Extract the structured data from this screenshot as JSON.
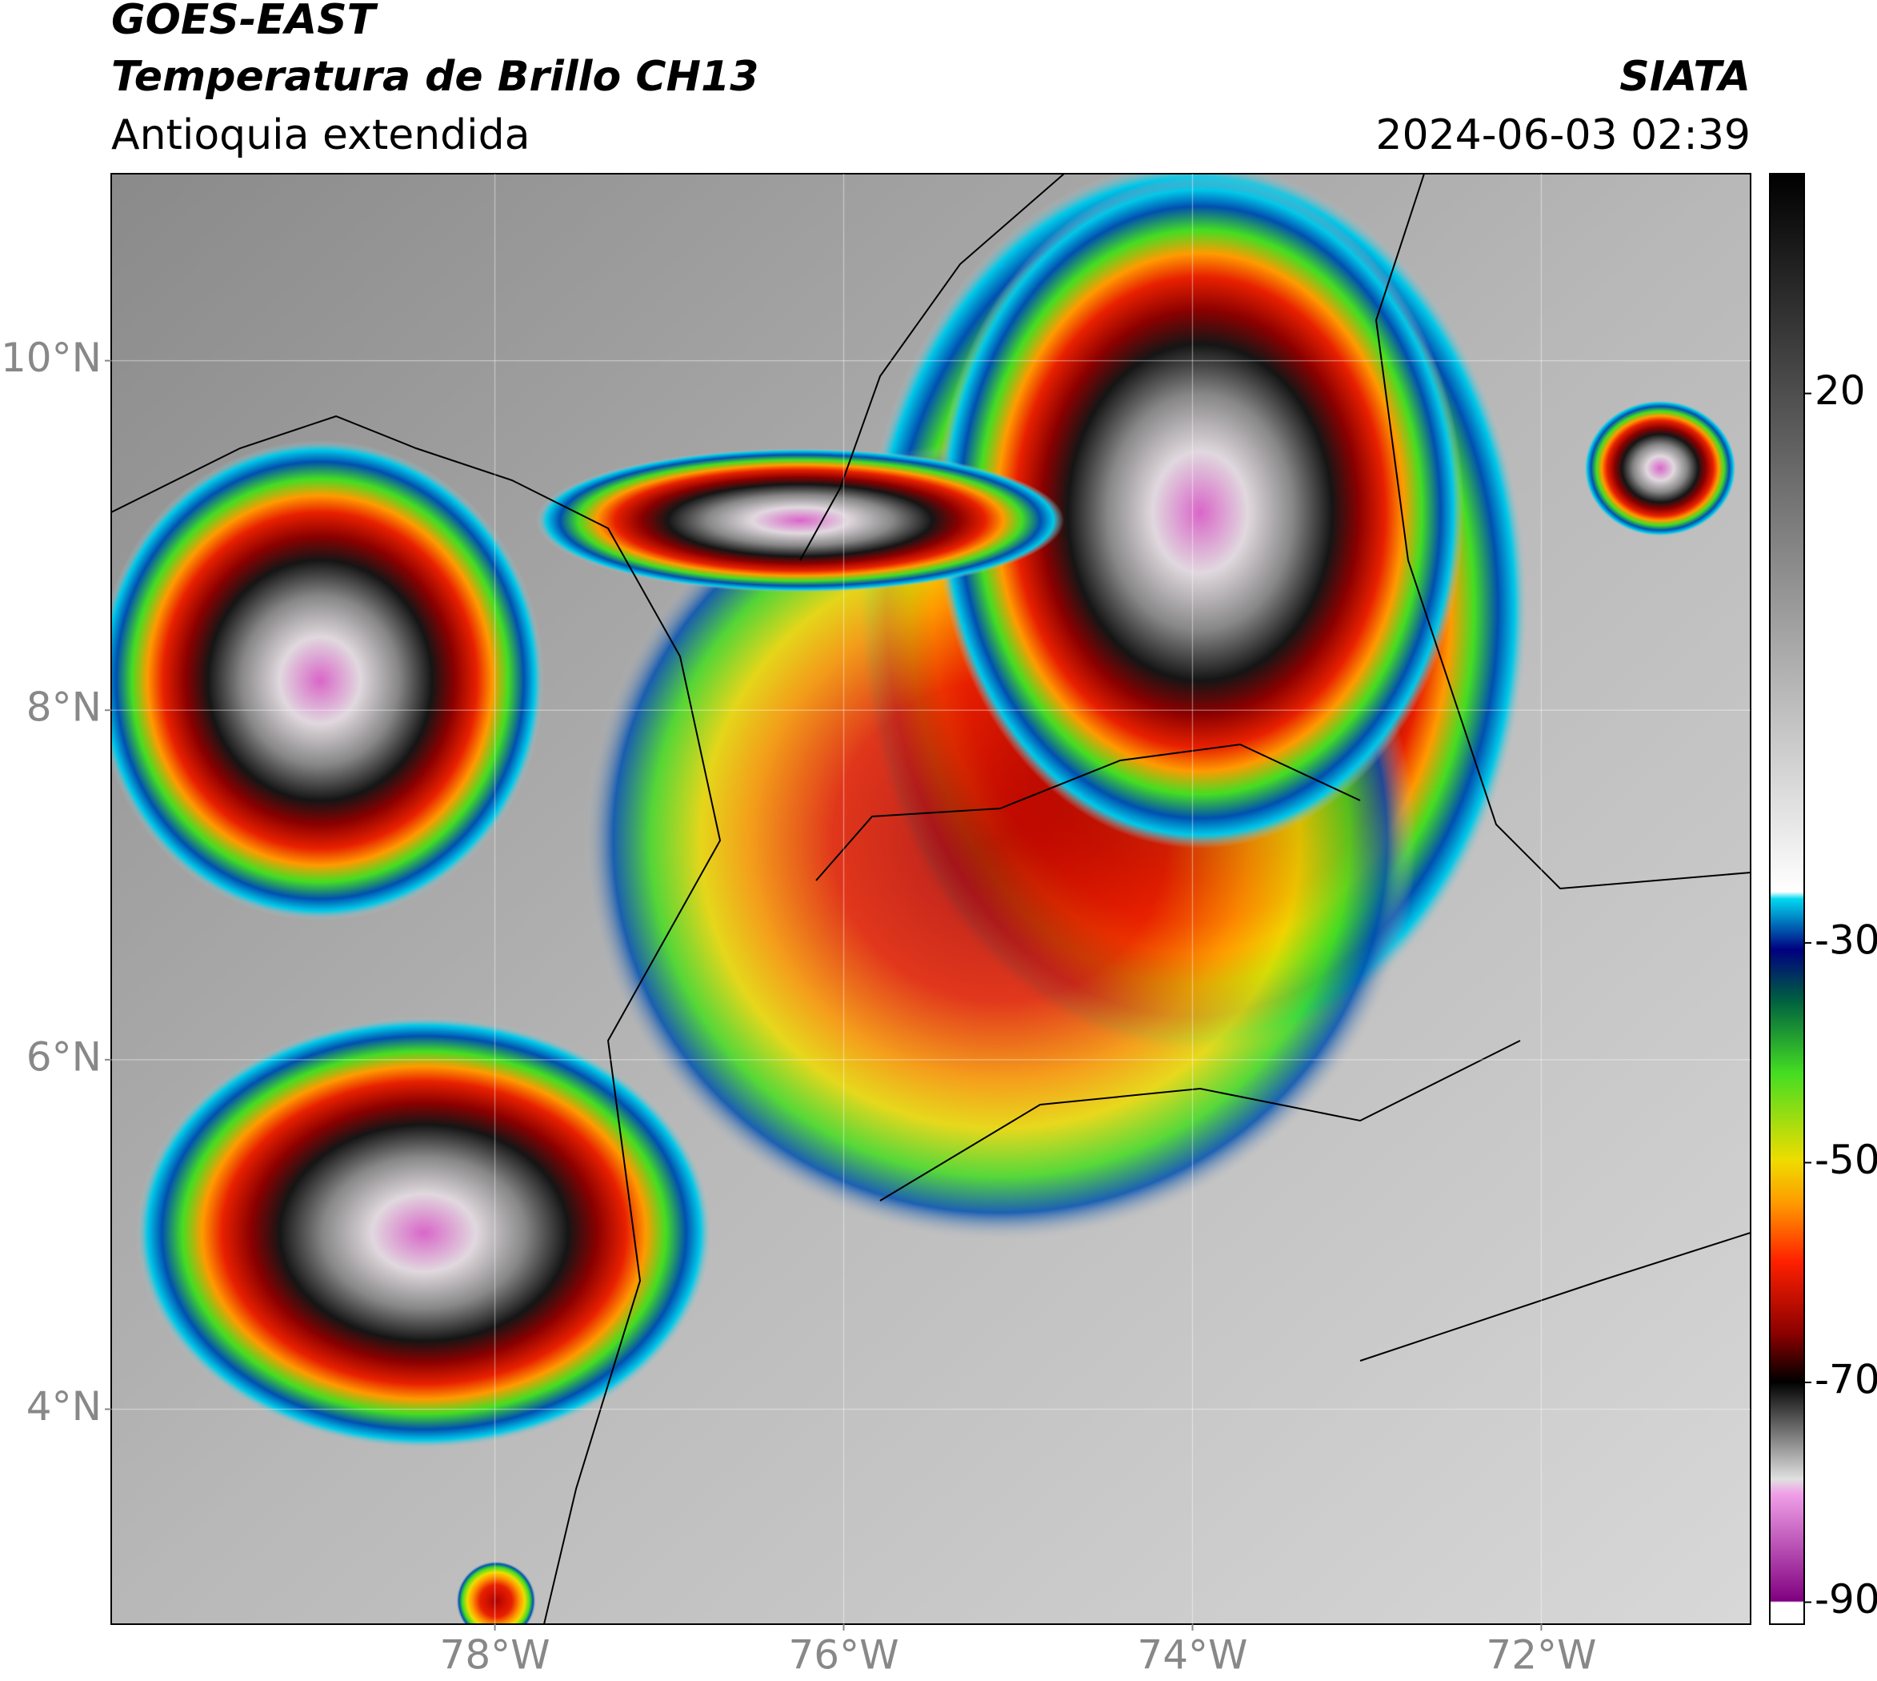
{
  "header": {
    "title": "GOES-EAST",
    "subtitle": "Temperatura de Brillo CH13",
    "region": "Antioquia extendida",
    "source": "SIATA",
    "datetime": "2024-06-03 02:39"
  },
  "map": {
    "xlim": [
      -80.2,
      -70.8
    ],
    "ylim": [
      2.77,
      11.07
    ],
    "xticks": [
      {
        "value": -78,
        "label": "78°W"
      },
      {
        "value": -76,
        "label": "76°W"
      },
      {
        "value": -74,
        "label": "74°W"
      },
      {
        "value": -72,
        "label": "72°W"
      }
    ],
    "yticks": [
      {
        "value": 4,
        "label": "4°N"
      },
      {
        "value": 6,
        "label": "6°N"
      },
      {
        "value": 8,
        "label": "8°N"
      },
      {
        "value": 10,
        "label": "10°N"
      }
    ],
    "grid": true
  },
  "colorbar": {
    "clim": [
      -92,
      40
    ],
    "ticks": [
      -90,
      -70,
      -50,
      -30,
      20
    ]
  }
}
